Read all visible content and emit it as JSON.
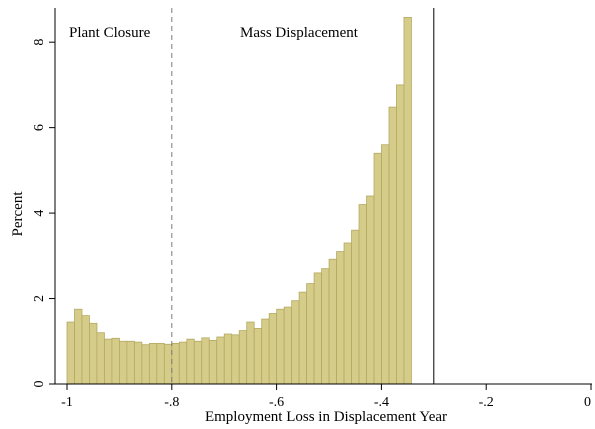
{
  "chart_data": {
    "type": "bar",
    "xlabel": "Employment Loss in Displacement Year",
    "ylabel": "Percent",
    "xlim": [
      -1,
      0
    ],
    "ylim": [
      0,
      8.8
    ],
    "x_ticks": [
      -1,
      -0.8,
      -0.6,
      -0.4,
      -0.2,
      0
    ],
    "x_tick_labels": [
      "-1",
      "-.8",
      "-.6",
      "-.4",
      "-.2",
      "0"
    ],
    "y_ticks": [
      0,
      2,
      4,
      6,
      8
    ],
    "y_tick_labels": [
      "0",
      "2",
      "4",
      "6",
      "8"
    ],
    "bin_start": -1,
    "bin_width": 0.01429,
    "values": [
      1.45,
      1.75,
      1.6,
      1.42,
      1.2,
      1.05,
      1.07,
      1.0,
      1.0,
      0.98,
      0.92,
      0.95,
      0.95,
      0.93,
      0.95,
      0.98,
      1.05,
      1.0,
      1.08,
      1.02,
      1.1,
      1.17,
      1.15,
      1.25,
      1.45,
      1.3,
      1.52,
      1.65,
      1.75,
      1.8,
      1.95,
      2.15,
      2.35,
      2.6,
      2.7,
      2.92,
      3.1,
      3.3,
      3.6,
      4.2,
      4.4,
      5.4,
      5.6,
      6.48,
      7.0,
      8.58
    ],
    "reference_lines": [
      {
        "x": -0.8,
        "style": "dashed"
      },
      {
        "x": -0.3,
        "style": "solid"
      }
    ],
    "annotations": [
      "Plant Closure",
      "Mass Displacement"
    ],
    "grid": false,
    "legend": "none"
  }
}
